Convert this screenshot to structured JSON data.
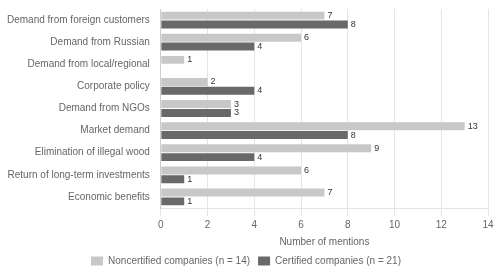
{
  "chart_data": {
    "type": "bar",
    "orientation": "horizontal",
    "categories": [
      "Demand from foreign customers",
      "Demand from Russian",
      "Demand from local/regional",
      "Corporate policy",
      "Demand from NGOs",
      "Market demand",
      "Elimination of illegal wood",
      "Return of long-term investments",
      "Economic benefits"
    ],
    "series": [
      {
        "name": "Noncertified companies (n = 14)",
        "color": "#c8c8c8",
        "values": [
          7,
          6,
          1,
          2,
          3,
          13,
          9,
          6,
          7
        ]
      },
      {
        "name": "Certified companies (n = 21)",
        "color": "#696969",
        "values": [
          8,
          4,
          0,
          4,
          3,
          8,
          4,
          1,
          1
        ]
      }
    ],
    "xlabel": "Number of mentions",
    "xlim": [
      0,
      14
    ],
    "xticks": [
      0,
      2,
      4,
      6,
      8,
      10,
      12,
      14
    ],
    "grid": true,
    "data_labels": true,
    "legend": "bottom"
  }
}
